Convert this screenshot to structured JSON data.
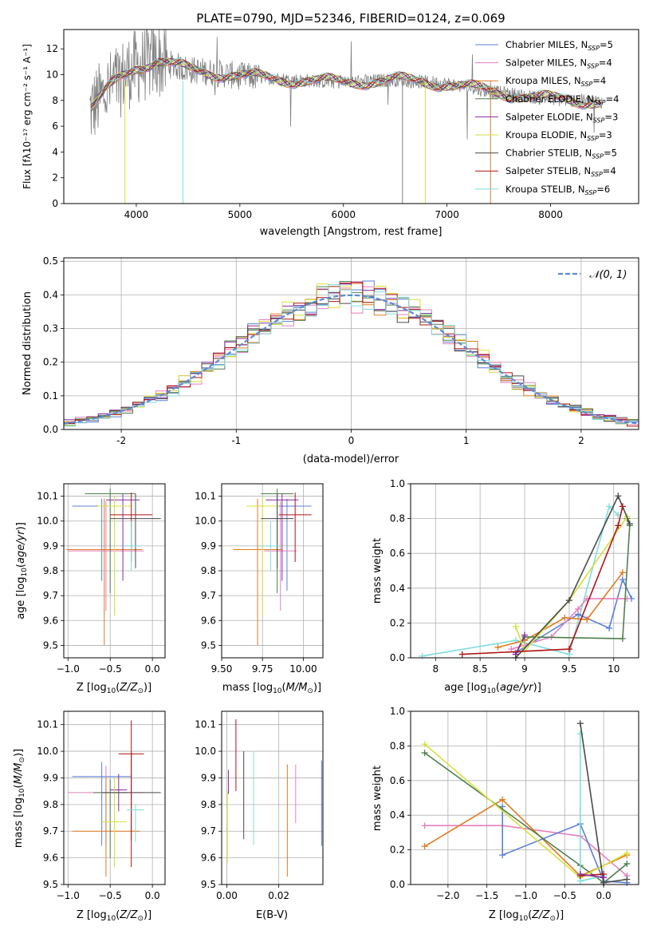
{
  "chart_data": [
    {
      "id": "spectrum",
      "type": "line",
      "title": "PLATE=0790, MJD=52346, FIBERID=0124, z=0.069",
      "xlabel": "wavelength [Angstrom, rest frame]",
      "ylabel": "Flux [fλ10⁻¹⁷ erg cm⁻² s⁻¹ A⁻¹]",
      "xlim": [
        3300,
        8850
      ],
      "ylim": [
        0,
        13.5
      ],
      "x_ticks": [
        4000,
        5000,
        6000,
        7000,
        8000
      ],
      "y_ticks": [
        0,
        2,
        4,
        6,
        8,
        10,
        12
      ],
      "grid": false,
      "legend_position": "top-right",
      "observed_color": "#808080",
      "continuum": [
        [
          3550,
          7.2
        ],
        [
          3700,
          8.6
        ],
        [
          3850,
          9.8
        ],
        [
          4000,
          10.6
        ],
        [
          4200,
          11.1
        ],
        [
          4500,
          10.4
        ],
        [
          5000,
          9.9
        ],
        [
          5500,
          9.6
        ],
        [
          6000,
          9.4
        ],
        [
          6500,
          9.6
        ],
        [
          7000,
          9.3
        ],
        [
          7500,
          8.6
        ],
        [
          8000,
          8.1
        ],
        [
          8500,
          7.9
        ]
      ],
      "series": [
        {
          "name": "Chabrier MILES, N_SSP=5",
          "label": "Chabrier MILES, N",
          "sub": "SSP",
          "suffix": "=5",
          "color": "#5b7fd6"
        },
        {
          "name": "Salpeter MILES, N_SSP=4",
          "label": "Salpeter MILES, N",
          "sub": "SSP",
          "suffix": "=4",
          "color": "#e57fbe"
        },
        {
          "name": "Kroupa MILES, N_SSP=4",
          "label": "Kroupa MILES, N",
          "sub": "SSP",
          "suffix": "=4",
          "color": "#e07b20"
        },
        {
          "name": "Chabrier ELODIE, N_SSP=4",
          "label": "Chabrier ELODIE, N",
          "sub": "SSP",
          "suffix": "=4",
          "color": "#4f7f4f"
        },
        {
          "name": "Salpeter ELODIE, N_SSP=3",
          "label": "Salpeter ELODIE, N",
          "sub": "SSP",
          "suffix": "=3",
          "color": "#8a2aa0"
        },
        {
          "name": "Kroupa ELODIE, N_SSP=3",
          "label": "Kroupa ELODIE, N",
          "sub": "SSP",
          "suffix": "=3",
          "color": "#d8df3a"
        },
        {
          "name": "Chabrier STELIB, N_SSP=5",
          "label": "Chabrier STELIB, N",
          "sub": "SSP",
          "suffix": "=5",
          "color": "#4a4a4a"
        },
        {
          "name": "Salpeter STELIB, N_SSP=4",
          "label": "Salpeter STELIB, N",
          "sub": "SSP",
          "suffix": "=4",
          "color": "#b21414"
        },
        {
          "name": "Kroupa STELIB, N_SSP=6",
          "label": "Kroupa STELIB, N",
          "sub": "SSP",
          "suffix": "=6",
          "color": "#7fdcdc"
        }
      ]
    },
    {
      "id": "residuals",
      "type": "line",
      "xlabel": "(data-model)/error",
      "ylabel": "Normed distribution",
      "xlim": [
        -2.5,
        2.5
      ],
      "ylim": [
        0,
        0.51
      ],
      "x_ticks": [
        -2,
        -1,
        0,
        1,
        2
      ],
      "y_ticks": [
        0.0,
        0.1,
        0.2,
        0.3,
        0.4,
        0.5
      ],
      "grid": true,
      "legend_position": "top-right",
      "legend_label": "𝒩(0, 1)",
      "gauss_color": "#5b8ad6",
      "bin_width": 0.1
    },
    {
      "id": "age_vs_Z",
      "type": "scatter",
      "xlabel": "Z [log10(Z/Z⊙)]",
      "ylabel": "age [log10(age/yr)]",
      "xlim": [
        -1.05,
        0.15
      ],
      "ylim": [
        9.45,
        10.15
      ],
      "x_ticks": [
        -1.0,
        -0.5,
        0.0
      ],
      "x_tick_labels": [
        "−1.0",
        "−0.5",
        "0.0"
      ],
      "y_ticks": [
        9.5,
        9.6,
        9.7,
        9.8,
        9.9,
        10.0,
        10.1
      ],
      "grid": true,
      "points": [
        {
          "color": "#5b7fd6",
          "x": -0.6,
          "xerr": 0.35,
          "y": 10.06,
          "yerr_lo": 0.3,
          "yerr_hi": 0.03
        },
        {
          "color": "#e57fbe",
          "x": -0.55,
          "xerr": 0.45,
          "y": 9.88,
          "yerr_lo": 0.24,
          "yerr_hi": 0.2
        },
        {
          "color": "#e07b20",
          "x": -0.57,
          "xerr": 0.45,
          "y": 9.885,
          "yerr_lo": 0.385,
          "yerr_hi": 0.205
        },
        {
          "color": "#4f7f4f",
          "x": -0.5,
          "xerr": 0.3,
          "y": 10.11,
          "yerr_lo": 0.4,
          "yerr_hi": 0.02
        },
        {
          "color": "#8a2aa0",
          "x": -0.35,
          "xerr": 0.2,
          "y": 10.085,
          "yerr_lo": 0.325,
          "yerr_hi": 0.025
        },
        {
          "color": "#d8df3a",
          "x": -0.45,
          "xerr": 0.2,
          "y": 10.06,
          "yerr_lo": 0.44,
          "yerr_hi": 0.04
        },
        {
          "color": "#4a4a4a",
          "x": -0.2,
          "xerr": 0.3,
          "y": 10.01,
          "yerr_lo": 0.2,
          "yerr_hi": 0.1
        },
        {
          "color": "#b21414",
          "x": -0.25,
          "xerr": 0.25,
          "y": 10.025,
          "yerr_lo": 0.19,
          "yerr_hi": 0.09
        },
        {
          "color": "#7fdcdc",
          "x": -0.25,
          "xerr": 0.1,
          "y": 9.9,
          "yerr_lo": 0.1,
          "yerr_hi": 0.1
        }
      ]
    },
    {
      "id": "age_vs_mass",
      "type": "scatter",
      "xlabel": "mass [log10(M/M⊙)]",
      "xlim": [
        9.5,
        10.12
      ],
      "ylim": [
        9.45,
        10.15
      ],
      "x_ticks": [
        9.5,
        9.75,
        10.0
      ],
      "x_tick_labels": [
        "9.50",
        "9.75",
        "10.00"
      ],
      "y_ticks": [
        9.5,
        9.6,
        9.7,
        9.8,
        9.9,
        10.0,
        10.1
      ],
      "grid": true,
      "points": [
        {
          "color": "#5b7fd6",
          "x": 9.9,
          "xerr": 0.15,
          "y": 10.06,
          "yerr_lo": 0.34,
          "yerr_hi": 0.03
        },
        {
          "color": "#e57fbe",
          "x": 9.86,
          "xerr": 0.1,
          "y": 9.88,
          "yerr_lo": 0.24,
          "yerr_hi": 0.2
        },
        {
          "color": "#e07b20",
          "x": 9.72,
          "xerr": 0.15,
          "y": 9.885,
          "yerr_lo": 0.385,
          "yerr_hi": 0.205
        },
        {
          "color": "#4f7f4f",
          "x": 9.84,
          "xerr": 0.1,
          "y": 10.11,
          "yerr_lo": 0.4,
          "yerr_hi": 0.02
        },
        {
          "color": "#8a2aa0",
          "x": 9.87,
          "xerr": 0.1,
          "y": 10.085,
          "yerr_lo": 0.325,
          "yerr_hi": 0.025
        },
        {
          "color": "#d8df3a",
          "x": 9.75,
          "xerr": 0.1,
          "y": 10.06,
          "yerr_lo": 0.44,
          "yerr_hi": 0.04
        },
        {
          "color": "#4a4a4a",
          "x": 9.84,
          "xerr": 0.1,
          "y": 10.01,
          "yerr_lo": 0.2,
          "yerr_hi": 0.1
        },
        {
          "color": "#b21414",
          "x": 9.95,
          "xerr": 0.1,
          "y": 10.025,
          "yerr_lo": 0.19,
          "yerr_hi": 0.09
        },
        {
          "color": "#7fdcdc",
          "x": 9.8,
          "xerr": 0.06,
          "y": 9.9,
          "yerr_lo": 0.1,
          "yerr_hi": 0.1
        }
      ]
    },
    {
      "id": "weight_vs_age",
      "type": "line",
      "xlabel": "age [log10(age/yr)]",
      "ylabel": "mass weight",
      "xlim": [
        7.72,
        10.28
      ],
      "ylim": [
        0,
        1.0
      ],
      "x_ticks": [
        8.0,
        8.5,
        9.0,
        9.5,
        10.0
      ],
      "y_ticks": [
        0.0,
        0.2,
        0.4,
        0.6,
        0.8,
        1.0
      ],
      "grid": true,
      "series": [
        {
          "color": "#7fdcdc",
          "points": [
            [
              7.85,
              0.01
            ],
            [
              8.9,
              0.1
            ],
            [
              9.5,
              0.02
            ],
            [
              9.95,
              0.87
            ],
            [
              10.05,
              0.82
            ]
          ]
        },
        {
          "color": "#5b7fd6",
          "points": [
            [
              8.9,
              0.03
            ],
            [
              9.6,
              0.25
            ],
            [
              9.95,
              0.17
            ],
            [
              10.1,
              0.45
            ],
            [
              10.2,
              0.34
            ]
          ]
        },
        {
          "color": "#e57fbe",
          "points": [
            [
              8.85,
              0.05
            ],
            [
              9.3,
              0.12
            ],
            [
              9.6,
              0.28
            ],
            [
              9.7,
              0.34
            ],
            [
              10.15,
              0.34
            ]
          ]
        },
        {
          "color": "#e07b20",
          "points": [
            [
              8.7,
              0.06
            ],
            [
              9.0,
              0.1
            ],
            [
              9.45,
              0.23
            ],
            [
              9.7,
              0.22
            ],
            [
              10.1,
              0.49
            ]
          ]
        },
        {
          "color": "#4f7f4f",
          "points": [
            [
              8.9,
              0.02
            ],
            [
              9.0,
              0.12
            ],
            [
              10.1,
              0.11
            ],
            [
              10.18,
              0.76
            ],
            [
              10.15,
              0.8
            ]
          ]
        },
        {
          "color": "#8a2aa0",
          "points": [
            [
              8.9,
              0.02
            ],
            [
              9.0,
              0.13
            ]
          ]
        },
        {
          "color": "#d8df3a",
          "points": [
            [
              8.9,
              0.18
            ],
            [
              9.0,
              0.04
            ],
            [
              9.5,
              0.33
            ],
            [
              10.15,
              0.81
            ]
          ]
        },
        {
          "color": "#4a4a4a",
          "points": [
            [
              8.9,
              0.0
            ],
            [
              9.5,
              0.33
            ],
            [
              10.05,
              0.93
            ],
            [
              10.18,
              0.77
            ]
          ]
        },
        {
          "color": "#b21414",
          "points": [
            [
              8.3,
              0.02
            ],
            [
              9.5,
              0.05
            ],
            [
              10.05,
              0.76
            ],
            [
              10.1,
              0.87
            ]
          ]
        }
      ]
    },
    {
      "id": "mass_vs_Z",
      "type": "scatter",
      "xlabel": "Z [log10(Z/Z⊙)]",
      "ylabel": "mass [log10(M/M⊙)]",
      "xlim": [
        -1.05,
        0.15
      ],
      "ylim": [
        9.5,
        10.15
      ],
      "x_ticks": [
        -1.0,
        -0.5,
        0.0
      ],
      "x_tick_labels": [
        "−1.0",
        "−0.5",
        "0.0"
      ],
      "y_ticks": [
        9.5,
        9.6,
        9.7,
        9.8,
        9.9,
        10.0,
        10.1
      ],
      "grid": true,
      "points": [
        {
          "color": "#5b7fd6",
          "x": -0.6,
          "xerr": 0.35,
          "y": 9.905,
          "yerr_lo": 0.26,
          "yerr_hi": 0.055
        },
        {
          "color": "#e57fbe",
          "x": -0.55,
          "xerr": 0.45,
          "y": 9.845,
          "yerr_lo": 0.2,
          "yerr_hi": 0.1
        },
        {
          "color": "#e07b20",
          "x": -0.55,
          "xerr": 0.4,
          "y": 9.7,
          "yerr_lo": 0.17,
          "yerr_hi": 0.2
        },
        {
          "color": "#4f7f4f",
          "x": -0.5,
          "xerr": 0.2,
          "y": 9.845,
          "yerr_lo": 0.245,
          "yerr_hi": 0.05
        },
        {
          "color": "#8a2aa0",
          "x": -0.4,
          "xerr": 0.1,
          "y": 9.855,
          "yerr_lo": 0.08,
          "yerr_hi": 0.06
        },
        {
          "color": "#d8df3a",
          "x": -0.45,
          "xerr": 0.15,
          "y": 9.735,
          "yerr_lo": 0.17,
          "yerr_hi": 0.165
        },
        {
          "color": "#4a4a4a",
          "x": -0.25,
          "xerr": 0.35,
          "y": 9.845,
          "yerr_lo": 0.18,
          "yerr_hi": 0.15
        },
        {
          "color": "#b21414",
          "x": -0.25,
          "xerr": 0.15,
          "y": 9.99,
          "yerr_lo": 0.425,
          "yerr_hi": 0.125
        },
        {
          "color": "#7fdcdc",
          "x": -0.2,
          "xerr": 0.1,
          "y": 9.78,
          "yerr_lo": 0.12,
          "yerr_hi": 0.02
        }
      ]
    },
    {
      "id": "mass_vs_ebv",
      "type": "scatter",
      "xlabel": "E(B-V)",
      "xlim": [
        -0.002,
        0.037
      ],
      "ylim": [
        9.5,
        10.15
      ],
      "x_ticks": [
        0.0,
        0.02
      ],
      "x_tick_labels": [
        "0.00",
        "0.02"
      ],
      "y_ticks": [
        9.5,
        9.6,
        9.7,
        9.8,
        9.9,
        10.0,
        10.1
      ],
      "grid": true,
      "bars": [
        {
          "color": "#d8df3a",
          "x": 0.0002,
          "lo": 9.58,
          "hi": 9.85
        },
        {
          "color": "#8a2aa0",
          "x": 0.0006,
          "lo": 9.84,
          "hi": 9.93
        },
        {
          "color": "#b21414",
          "x": 0.0035,
          "lo": 9.85,
          "hi": 10.12
        },
        {
          "color": "#4a4a4a",
          "x": 0.0065,
          "lo": 9.67,
          "hi": 10.0
        },
        {
          "color": "#7fdcdc",
          "x": 0.0103,
          "lo": 9.65,
          "hi": 10.0
        },
        {
          "color": "#e07b20",
          "x": 0.0233,
          "lo": 9.53,
          "hi": 9.95
        },
        {
          "color": "#e57fbe",
          "x": 0.0265,
          "lo": 9.73,
          "hi": 9.95
        },
        {
          "color": "#5b7fd6",
          "x": 0.0365,
          "lo": 9.645,
          "hi": 9.965
        }
      ]
    },
    {
      "id": "weight_vs_Z",
      "type": "line",
      "xlabel": "Z [log10(Z/Z⊙)]",
      "ylabel": "mass weight",
      "xlim": [
        -2.48,
        0.45
      ],
      "ylim": [
        0,
        1.0
      ],
      "x_ticks": [
        -2.0,
        -1.5,
        -1.0,
        -0.5,
        0.0
      ],
      "x_tick_labels": [
        "−2.0",
        "−1.5",
        "−1.0",
        "−0.5",
        "0.0"
      ],
      "y_ticks": [
        0.0,
        0.2,
        0.4,
        0.6,
        0.8,
        1.0
      ],
      "grid": true,
      "series": [
        {
          "color": "#e57fbe",
          "points": [
            [
              -2.3,
              0.34
            ],
            [
              -1.3,
              0.34
            ],
            [
              -0.3,
              0.28
            ],
            [
              0.3,
              0.05
            ]
          ]
        },
        {
          "color": "#e07b20",
          "points": [
            [
              -2.3,
              0.22
            ],
            [
              -1.3,
              0.49
            ],
            [
              -0.3,
              0.05
            ],
            [
              0.3,
              0.17
            ]
          ]
        },
        {
          "color": "#5b7fd6",
          "points": [
            [
              -1.3,
              0.45
            ],
            [
              -1.3,
              0.17
            ],
            [
              -0.3,
              0.35
            ],
            [
              0.0,
              0.02
            ],
            [
              0.3,
              0.01
            ]
          ]
        },
        {
          "color": "#4f7f4f",
          "points": [
            [
              -2.3,
              0.76
            ],
            [
              -0.3,
              0.11
            ],
            [
              0.0,
              0.01
            ],
            [
              0.3,
              0.12
            ]
          ]
        },
        {
          "color": "#d8df3a",
          "points": [
            [
              -2.3,
              0.81
            ],
            [
              -0.3,
              0.04
            ],
            [
              0.3,
              0.18
            ]
          ]
        },
        {
          "color": "#7fdcdc",
          "points": [
            [
              -0.3,
              0.87
            ],
            [
              -0.3,
              0.02
            ],
            [
              0.0,
              0.05
            ]
          ]
        },
        {
          "color": "#4a4a4a",
          "points": [
            [
              -0.3,
              0.93
            ],
            [
              0.0,
              0.01
            ],
            [
              0.3,
              0.03
            ]
          ]
        },
        {
          "color": "#b21414",
          "points": [
            [
              -0.3,
              0.05
            ],
            [
              0.0,
              0.06
            ]
          ]
        },
        {
          "color": "#8a2aa0",
          "points": [
            [
              -0.3,
              0.06
            ],
            [
              0.0,
              0.04
            ]
          ]
        }
      ]
    }
  ]
}
